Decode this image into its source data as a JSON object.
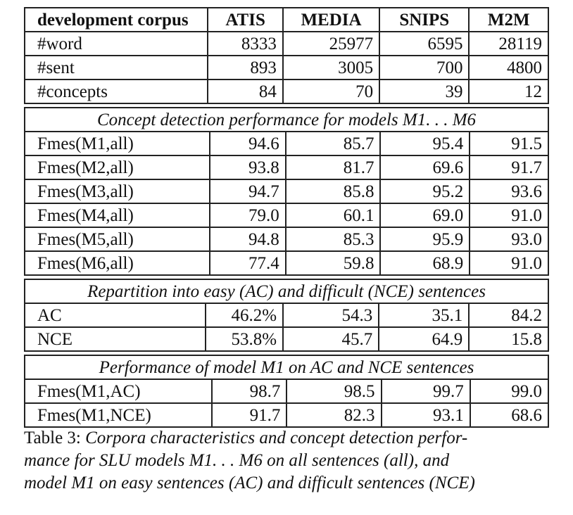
{
  "header": {
    "corpus_label": "development corpus",
    "columns": [
      "ATIS",
      "MEDIA",
      "SNIPS",
      "M2M"
    ]
  },
  "stats": [
    {
      "label": "#word",
      "values": [
        "8333",
        "25977",
        "6595",
        "28119"
      ]
    },
    {
      "label": "#sent",
      "values": [
        "893",
        "3005",
        "700",
        "4800"
      ]
    },
    {
      "label": "#concepts",
      "values": [
        "84",
        "70",
        "39",
        "12"
      ]
    }
  ],
  "section_perf": {
    "title": "Concept detection performance for models M1. . . M6",
    "rows": [
      {
        "label": "Fmes(M1,all)",
        "values": [
          "94.6",
          "85.7",
          "95.4",
          "91.5"
        ]
      },
      {
        "label": "Fmes(M2,all)",
        "values": [
          "93.8",
          "81.7",
          "69.6",
          "91.7"
        ]
      },
      {
        "label": "Fmes(M3,all)",
        "values": [
          "94.7",
          "85.8",
          "95.2",
          "93.6"
        ]
      },
      {
        "label": "Fmes(M4,all)",
        "values": [
          "79.0",
          "60.1",
          "69.0",
          "91.0"
        ]
      },
      {
        "label": "Fmes(M5,all)",
        "values": [
          "94.8",
          "85.3",
          "95.9",
          "93.0"
        ]
      },
      {
        "label": "Fmes(M6,all)",
        "values": [
          "77.4",
          "59.8",
          "68.9",
          "91.0"
        ]
      }
    ]
  },
  "section_rep": {
    "title": "Repartition into easy (AC) and difficult (NCE) sentences",
    "rows": [
      {
        "label": "AC",
        "values": [
          "46.2%",
          "54.3",
          "35.1",
          "84.2"
        ]
      },
      {
        "label": "NCE",
        "values": [
          "53.8%",
          "45.7",
          "64.9",
          "15.8"
        ]
      }
    ]
  },
  "section_m1": {
    "title": "Performance of model M1 on AC and NCE sentences",
    "rows": [
      {
        "label": "Fmes(M1,AC)",
        "values": [
          "98.7",
          "98.5",
          "99.7",
          "99.0"
        ]
      },
      {
        "label": "Fmes(M1,NCE)",
        "values": [
          "91.7",
          "82.3",
          "93.1",
          "68.6"
        ]
      }
    ]
  },
  "caption": {
    "prefix": "Table 3: ",
    "lines": [
      "Corpora characteristics and concept detection perfor-",
      "mance for SLU models M1. . . M6 on all sentences (all), and",
      "model M1 on easy sentences (AC) and difficult sentences (NCE)"
    ]
  }
}
